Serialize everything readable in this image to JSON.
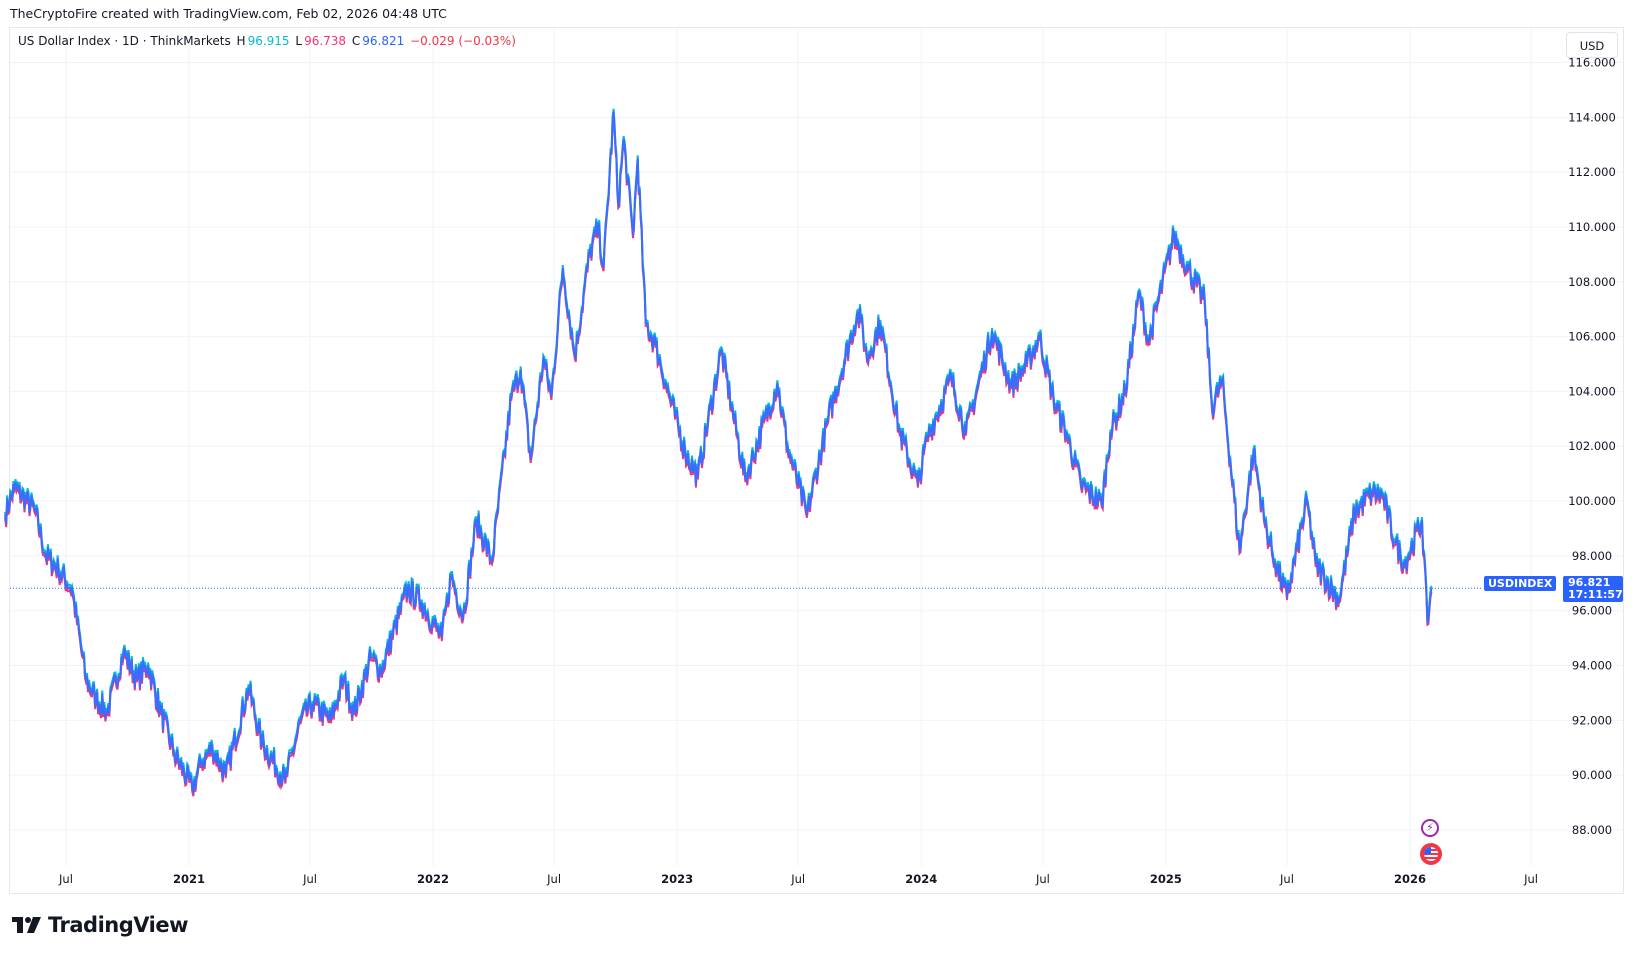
{
  "credit": "TheCryptoFire created with TradingView.com, Feb 02, 2026 04:48 UTC",
  "legend": {
    "title": "US Dollar Index · 1D · ThinkMarkets",
    "h_label": "H",
    "h_value": "96.915",
    "l_label": "L",
    "l_value": "96.738",
    "c_label": "C",
    "c_value": "96.821",
    "change": "−0.029 (−0.03%)"
  },
  "currency_button": "USD",
  "price_tag": {
    "symbol": "USDINDEX",
    "price": "96.821",
    "countdown": "17:11:57"
  },
  "logo": "TradingView",
  "event_icons": [
    "lightning-event-icon",
    "us-flag-icon"
  ],
  "colors": {
    "high": "#00bcd4",
    "mid": "#3b6cff",
    "low": "#f23672",
    "accent": "#2962ff"
  },
  "chart_data": {
    "type": "line",
    "title": "US Dollar Index · 1D · ThinkMarkets",
    "ylim": [
      86.5,
      116.5
    ],
    "grid": true,
    "y_ticks": [
      "88.000",
      "90.000",
      "92.000",
      "94.000",
      "96.000",
      "98.000",
      "100.000",
      "102.000",
      "104.000",
      "106.000",
      "108.000",
      "110.000",
      "112.000",
      "114.000",
      "116.000"
    ],
    "x_ticks": [
      {
        "label": "Jul",
        "date": "2020-07-01"
      },
      {
        "label": "2021",
        "date": "2021-01-01"
      },
      {
        "label": "Jul",
        "date": "2021-07-01"
      },
      {
        "label": "2022",
        "date": "2022-01-01"
      },
      {
        "label": "Jul",
        "date": "2022-07-01"
      },
      {
        "label": "2023",
        "date": "2023-01-01"
      },
      {
        "label": "Jul",
        "date": "2023-07-01"
      },
      {
        "label": "2024",
        "date": "2024-01-01"
      },
      {
        "label": "Jul",
        "date": "2024-07-01"
      },
      {
        "label": "2025",
        "date": "2025-01-01"
      },
      {
        "label": "Jul",
        "date": "2025-07-01"
      },
      {
        "label": "2026",
        "date": "2026-01-01"
      },
      {
        "label": "Jul",
        "date": "2026-07-01"
      }
    ],
    "last_price": 96.821,
    "series": [
      {
        "points": [
          [
            "2020-04-01",
            99.5
          ],
          [
            "2020-04-15",
            100.5
          ],
          [
            "2020-05-15",
            99.7
          ],
          [
            "2020-06-01",
            98.0
          ],
          [
            "2020-06-20",
            97.5
          ],
          [
            "2020-07-10",
            96.8
          ],
          [
            "2020-07-31",
            93.5
          ],
          [
            "2020-08-15",
            92.8
          ],
          [
            "2020-09-01",
            92.3
          ],
          [
            "2020-09-25",
            94.5
          ],
          [
            "2020-10-15",
            93.5
          ],
          [
            "2020-11-01",
            94.0
          ],
          [
            "2020-11-20",
            92.3
          ],
          [
            "2020-12-10",
            90.8
          ],
          [
            "2021-01-06",
            89.5
          ],
          [
            "2021-01-20",
            90.5
          ],
          [
            "2021-02-05",
            91.0
          ],
          [
            "2021-02-25",
            90.0
          ],
          [
            "2021-03-31",
            93.2
          ],
          [
            "2021-04-20",
            91.2
          ],
          [
            "2021-05-25",
            89.8
          ],
          [
            "2021-06-17",
            92.0
          ],
          [
            "2021-07-05",
            92.6
          ],
          [
            "2021-08-01",
            92.0
          ],
          [
            "2021-08-20",
            93.5
          ],
          [
            "2021-09-05",
            92.3
          ],
          [
            "2021-09-30",
            94.3
          ],
          [
            "2021-10-15",
            93.8
          ],
          [
            "2021-11-24",
            96.8
          ],
          [
            "2021-12-15",
            96.3
          ],
          [
            "2022-01-14",
            95.0
          ],
          [
            "2022-01-28",
            97.3
          ],
          [
            "2022-02-15",
            95.8
          ],
          [
            "2022-03-07",
            99.3
          ],
          [
            "2022-03-30",
            97.8
          ],
          [
            "2022-04-28",
            103.8
          ],
          [
            "2022-05-12",
            104.8
          ],
          [
            "2022-05-27",
            101.5
          ],
          [
            "2022-06-15",
            105.2
          ],
          [
            "2022-06-27",
            103.8
          ],
          [
            "2022-07-14",
            108.5
          ],
          [
            "2022-08-01",
            105.3
          ],
          [
            "2022-08-23",
            109.0
          ],
          [
            "2022-09-05",
            110.0
          ],
          [
            "2022-09-13",
            108.5
          ],
          [
            "2022-09-28",
            114.2
          ],
          [
            "2022-10-05",
            110.8
          ],
          [
            "2022-10-13",
            113.2
          ],
          [
            "2022-10-27",
            109.7
          ],
          [
            "2022-11-03",
            112.5
          ],
          [
            "2022-11-15",
            106.5
          ],
          [
            "2022-11-30",
            105.7
          ],
          [
            "2022-12-15",
            104.3
          ],
          [
            "2023-01-13",
            101.8
          ],
          [
            "2023-02-01",
            100.9
          ],
          [
            "2023-03-08",
            105.5
          ],
          [
            "2023-04-13",
            100.8
          ],
          [
            "2023-05-31",
            104.3
          ],
          [
            "2023-06-15",
            102.0
          ],
          [
            "2023-07-14",
            99.5
          ],
          [
            "2023-08-15",
            103.0
          ],
          [
            "2023-09-27",
            106.8
          ],
          [
            "2023-10-03",
            106.6
          ],
          [
            "2023-10-12",
            105.2
          ],
          [
            "2023-11-01",
            106.5
          ],
          [
            "2023-11-30",
            102.5
          ],
          [
            "2023-12-27",
            100.6
          ],
          [
            "2024-01-10",
            102.3
          ],
          [
            "2024-02-15",
            104.5
          ],
          [
            "2024-03-08",
            102.5
          ],
          [
            "2024-04-16",
            106.2
          ],
          [
            "2024-05-15",
            104.2
          ],
          [
            "2024-06-07",
            105.0
          ],
          [
            "2024-06-26",
            106.0
          ],
          [
            "2024-07-17",
            103.7
          ],
          [
            "2024-08-05",
            102.5
          ],
          [
            "2024-08-27",
            100.6
          ],
          [
            "2024-09-27",
            99.9
          ],
          [
            "2024-10-10",
            102.5
          ],
          [
            "2024-11-01",
            104.0
          ],
          [
            "2024-11-22",
            107.6
          ],
          [
            "2024-12-06",
            105.8
          ],
          [
            "2025-01-13",
            109.7
          ],
          [
            "2025-02-03",
            108.5
          ],
          [
            "2025-02-28",
            107.3
          ],
          [
            "2025-03-11",
            103.4
          ],
          [
            "2025-03-26",
            104.4
          ],
          [
            "2025-04-21",
            98.2
          ],
          [
            "2025-05-12",
            101.8
          ],
          [
            "2025-05-29",
            99.2
          ],
          [
            "2025-06-13",
            97.8
          ],
          [
            "2025-07-01",
            96.5
          ],
          [
            "2025-07-31",
            100.0
          ],
          [
            "2025-08-13",
            97.7
          ],
          [
            "2025-09-17",
            96.4
          ],
          [
            "2025-10-10",
            99.6
          ],
          [
            "2025-11-05",
            100.3
          ],
          [
            "2025-11-21",
            100.2
          ],
          [
            "2025-12-10",
            98.5
          ],
          [
            "2025-12-24",
            97.7
          ],
          [
            "2026-01-19",
            99.3
          ],
          [
            "2026-01-27",
            95.6
          ],
          [
            "2026-02-02",
            96.8
          ]
        ]
      }
    ]
  }
}
